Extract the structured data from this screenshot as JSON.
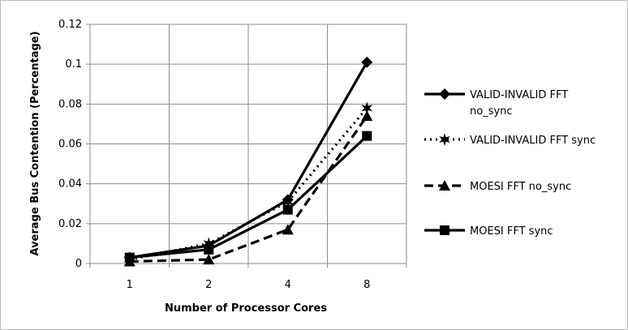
{
  "chart_data": {
    "type": "line",
    "title": "",
    "xlabel": "Number of Processor Cores",
    "ylabel": "Average Bus Contention (Percentage)",
    "categories": [
      "1",
      "2",
      "4",
      "8"
    ],
    "ylim": [
      0,
      0.12
    ],
    "yticks": [
      "0",
      "0.02",
      "0.04",
      "0.06",
      "0.08",
      "0.1",
      "0.12"
    ],
    "grid": true,
    "legend_position": "right",
    "series": [
      {
        "name": "VALID-INVALID FFT no_sync",
        "legend_lines": [
          "VALID-INVALID FFT",
          "no_sync"
        ],
        "values": [
          0.003,
          0.009,
          0.032,
          0.101
        ],
        "marker": "diamond",
        "dash": "solid"
      },
      {
        "name": "VALID-INVALID FFT sync",
        "legend_lines": [
          "VALID-INVALID FFT sync"
        ],
        "values": [
          0.002,
          0.01,
          0.031,
          0.078
        ],
        "marker": "star",
        "dash": "dotted"
      },
      {
        "name": "MOESI FFT no_sync",
        "legend_lines": [
          "MOESI FFT no_sync"
        ],
        "values": [
          0.001,
          0.002,
          0.017,
          0.074
        ],
        "marker": "triangle",
        "dash": "dashed"
      },
      {
        "name": "MOESI FFT sync",
        "legend_lines": [
          "MOESI FFT sync"
        ],
        "values": [
          0.003,
          0.007,
          0.027,
          0.064
        ],
        "marker": "square",
        "dash": "solid"
      }
    ],
    "line_color": "#000000",
    "grid_color": "#8c8c8c"
  }
}
